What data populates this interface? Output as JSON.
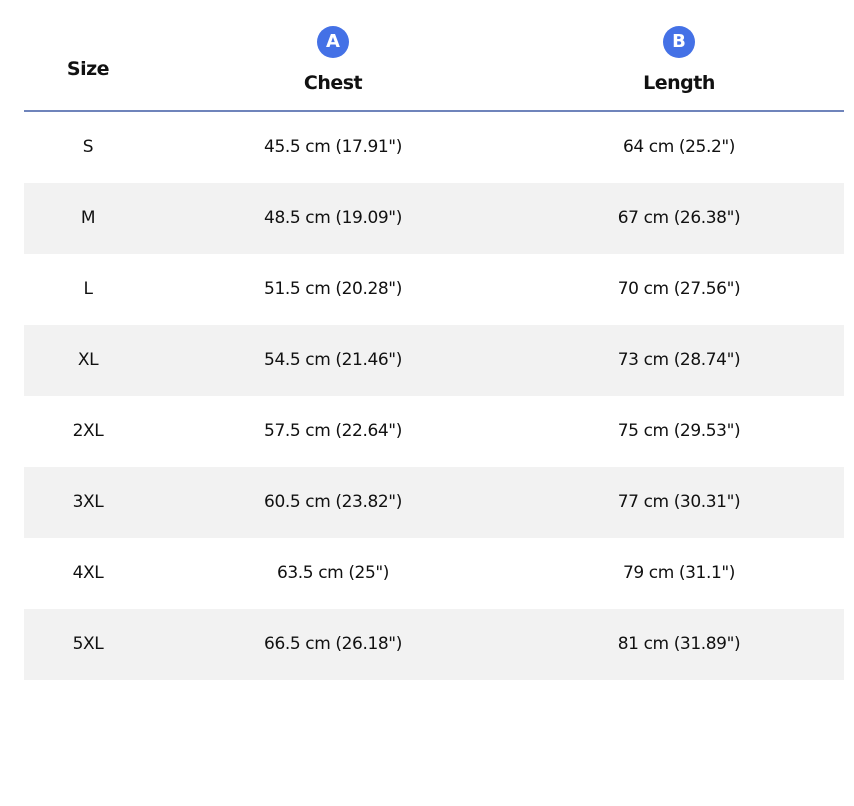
{
  "header": {
    "size": "Size",
    "chest": {
      "badge": "A",
      "label": "Chest"
    },
    "length": {
      "badge": "B",
      "label": "Length"
    }
  },
  "colors": {
    "badge": "#4471e6",
    "header_rule": "#6f84bb",
    "stripe": "#f2f2f2"
  },
  "rows": [
    {
      "size": "S",
      "chest": "45.5 cm (17.91\")",
      "length": "64 cm (25.2\")"
    },
    {
      "size": "M",
      "chest": "48.5 cm (19.09\")",
      "length": "67 cm (26.38\")"
    },
    {
      "size": "L",
      "chest": "51.5 cm (20.28\")",
      "length": "70 cm (27.56\")"
    },
    {
      "size": "XL",
      "chest": "54.5 cm (21.46\")",
      "length": "73 cm (28.74\")"
    },
    {
      "size": "2XL",
      "chest": "57.5 cm (22.64\")",
      "length": "75 cm (29.53\")"
    },
    {
      "size": "3XL",
      "chest": "60.5 cm (23.82\")",
      "length": "77 cm (30.31\")"
    },
    {
      "size": "4XL",
      "chest": "63.5 cm (25\")",
      "length": "79 cm (31.1\")"
    },
    {
      "size": "5XL",
      "chest": "66.5 cm (26.18\")",
      "length": "81 cm (31.89\")"
    }
  ]
}
